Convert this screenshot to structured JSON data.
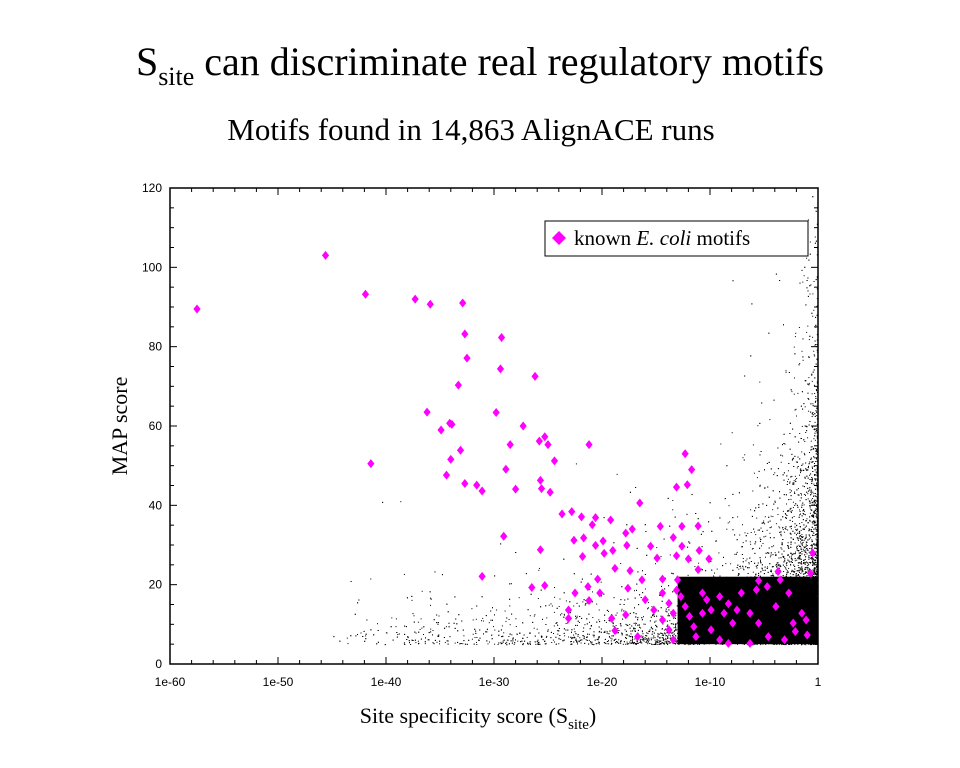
{
  "chart_data": {
    "type": "scatter",
    "title_main": "S",
    "title_sub": "site",
    "title_rest": " can discriminate real regulatory motifs",
    "subtitle": "Motifs found in 14,863 AlignACE runs",
    "xlabel_main": "Site specificity score (S",
    "xlabel_sub": "site",
    "xlabel_end": ")",
    "ylabel": "MAP score",
    "xscale": "log",
    "xlim_log10": [
      -60,
      0
    ],
    "ylim": [
      0,
      120
    ],
    "x_ticks": [
      {
        "log10": -60,
        "label": "1e-60"
      },
      {
        "log10": -50,
        "label": "1e-50"
      },
      {
        "log10": -40,
        "label": "1e-40"
      },
      {
        "log10": -30,
        "label": "1e-30"
      },
      {
        "log10": -20,
        "label": "1e-20"
      },
      {
        "log10": -10,
        "label": "1e-10"
      },
      {
        "log10": 0,
        "label": "1"
      }
    ],
    "y_ticks": [
      {
        "value": 0,
        "label": "0"
      },
      {
        "value": 20,
        "label": "20"
      },
      {
        "value": 40,
        "label": "40"
      },
      {
        "value": 60,
        "label": "60"
      },
      {
        "value": 80,
        "label": "80"
      },
      {
        "value": 100,
        "label": "100"
      },
      {
        "value": 120,
        "label": "120"
      }
    ],
    "grid": false,
    "legend": {
      "placement": "top-right",
      "label_pre": "known ",
      "label_italic": "E. coli",
      "label_post": " motifs"
    },
    "series": [
      {
        "name": "known E. coli motifs",
        "color": "#ff00ff",
        "marker": "diamond",
        "points_log10x_y": [
          [
            -57.5,
            89.5
          ],
          [
            -45.6,
            103
          ],
          [
            -41.9,
            93.2
          ],
          [
            -41.4,
            50.5
          ],
          [
            -37.3,
            92
          ],
          [
            -35.9,
            90.7
          ],
          [
            -32.9,
            91
          ],
          [
            -32.7,
            83.2
          ],
          [
            -32.5,
            77.1
          ],
          [
            -33.3,
            70.3
          ],
          [
            -36.2,
            63.5
          ],
          [
            -34.9,
            59
          ],
          [
            -34.1,
            60.7
          ],
          [
            -33.9,
            60.4
          ],
          [
            -33.1,
            53.9
          ],
          [
            -34.0,
            51.6
          ],
          [
            -34.4,
            47.6
          ],
          [
            -32.7,
            45.5
          ],
          [
            -31.6,
            45.1
          ],
          [
            -31.1,
            43.6
          ],
          [
            -31.1,
            22.1
          ],
          [
            -29.3,
            82.3
          ],
          [
            -29.4,
            74.4
          ],
          [
            -29.8,
            63.4
          ],
          [
            -28.5,
            55.3
          ],
          [
            -28.9,
            49.1
          ],
          [
            -28.0,
            44.1
          ],
          [
            -29.1,
            32.2
          ],
          [
            -27.3,
            60
          ],
          [
            -26.2,
            72.5
          ],
          [
            -25.8,
            56.2
          ],
          [
            -25.3,
            57.3
          ],
          [
            -25.0,
            55.3
          ],
          [
            -24.4,
            51.2
          ],
          [
            -25.7,
            46.3
          ],
          [
            -25.6,
            44.2
          ],
          [
            -24.8,
            43.3
          ],
          [
            -26.5,
            19.3
          ],
          [
            -25.3,
            19.8
          ],
          [
            -25.7,
            28.8
          ],
          [
            -21.2,
            55.3
          ],
          [
            -16.5,
            40.6
          ],
          [
            -23.7,
            37.8
          ],
          [
            -22.8,
            38.4
          ],
          [
            -21.9,
            37.1
          ],
          [
            -20.6,
            36.9
          ],
          [
            -19.2,
            36.3
          ],
          [
            -20.9,
            35.1
          ],
          [
            -19.9,
            31
          ],
          [
            -22.6,
            31.2
          ],
          [
            -21.7,
            31.8
          ],
          [
            -21.8,
            27.1
          ],
          [
            -19.8,
            27.9
          ],
          [
            -20.6,
            29.9
          ],
          [
            -19.0,
            28.6
          ],
          [
            -17.8,
            33
          ],
          [
            -17.2,
            34
          ],
          [
            -17.7,
            29.9
          ],
          [
            -20.4,
            21.4
          ],
          [
            -20.2,
            17.9
          ],
          [
            -21.2,
            16
          ],
          [
            -22.5,
            17.9
          ],
          [
            -21.3,
            19.5
          ],
          [
            -18.8,
            24.1
          ],
          [
            -17.4,
            23.5
          ],
          [
            -16.3,
            21.2
          ],
          [
            -17.6,
            19.1
          ],
          [
            -19.1,
            11.5
          ],
          [
            -18.8,
            8.4
          ],
          [
            -23.1,
            11.5
          ],
          [
            -23.1,
            13.6
          ],
          [
            -17.8,
            12.4
          ],
          [
            -16.7,
            6.9
          ],
          [
            -15.5,
            29.7
          ],
          [
            -14.6,
            34.7
          ],
          [
            -14.9,
            26.7
          ],
          [
            -14.4,
            21.4
          ],
          [
            -13.4,
            31.9
          ],
          [
            -12.6,
            29.7
          ],
          [
            -13.1,
            18.6
          ],
          [
            -11.1,
            34.8
          ],
          [
            -12.6,
            34.7
          ],
          [
            -13.1,
            44.6
          ],
          [
            -12.3,
            53
          ],
          [
            -12.1,
            45.2
          ],
          [
            -11.7,
            49
          ],
          [
            -11.0,
            28.6
          ],
          [
            -10.1,
            26.5
          ],
          [
            -11.1,
            23.8
          ],
          [
            -12.0,
            26.5
          ],
          [
            -13.1,
            27.3
          ],
          [
            -16.0,
            16.2
          ],
          [
            -15.2,
            13.6
          ],
          [
            -14.4,
            11.1
          ],
          [
            -13.8,
            8.6
          ],
          [
            -13.4,
            6.1
          ],
          [
            -12.7,
            17
          ],
          [
            -12.3,
            14.5
          ],
          [
            -11.9,
            12
          ],
          [
            -11.5,
            9.4
          ],
          [
            -11.3,
            6.9
          ],
          [
            -10.7,
            17.9
          ],
          [
            -10.3,
            16.2
          ],
          [
            -9.9,
            13.6
          ],
          [
            -9.1,
            17
          ],
          [
            -8.7,
            12.8
          ],
          [
            -8.3,
            15.2
          ],
          [
            -7.9,
            10.3
          ],
          [
            -9.9,
            8.6
          ],
          [
            -9.1,
            6.1
          ],
          [
            -8.3,
            5.2
          ],
          [
            -7.1,
            17.9
          ],
          [
            -6.3,
            12.8
          ],
          [
            -5.5,
            10.3
          ],
          [
            -4.6,
            6.9
          ],
          [
            -5.7,
            18.7
          ],
          [
            -4.7,
            19.5
          ],
          [
            -3.9,
            14.5
          ],
          [
            -3.5,
            21.2
          ],
          [
            -3.1,
            6.1
          ],
          [
            -2.7,
            17.9
          ],
          [
            -2.3,
            10.3
          ],
          [
            -2.1,
            8.2
          ],
          [
            -1.5,
            12.8
          ],
          [
            -1.1,
            11.1
          ],
          [
            -1.0,
            7.3
          ],
          [
            -0.7,
            22.9
          ],
          [
            -0.5,
            28
          ],
          [
            -6.3,
            5.2
          ],
          [
            -5.5,
            21
          ],
          [
            -3.7,
            23.3
          ],
          [
            -14.4,
            17.9
          ],
          [
            -13.8,
            15.3
          ],
          [
            -13.4,
            12.8
          ],
          [
            -13.0,
            21.2
          ],
          [
            -10.7,
            12.8
          ],
          [
            -7.5,
            13.6
          ]
        ]
      }
    ]
  }
}
